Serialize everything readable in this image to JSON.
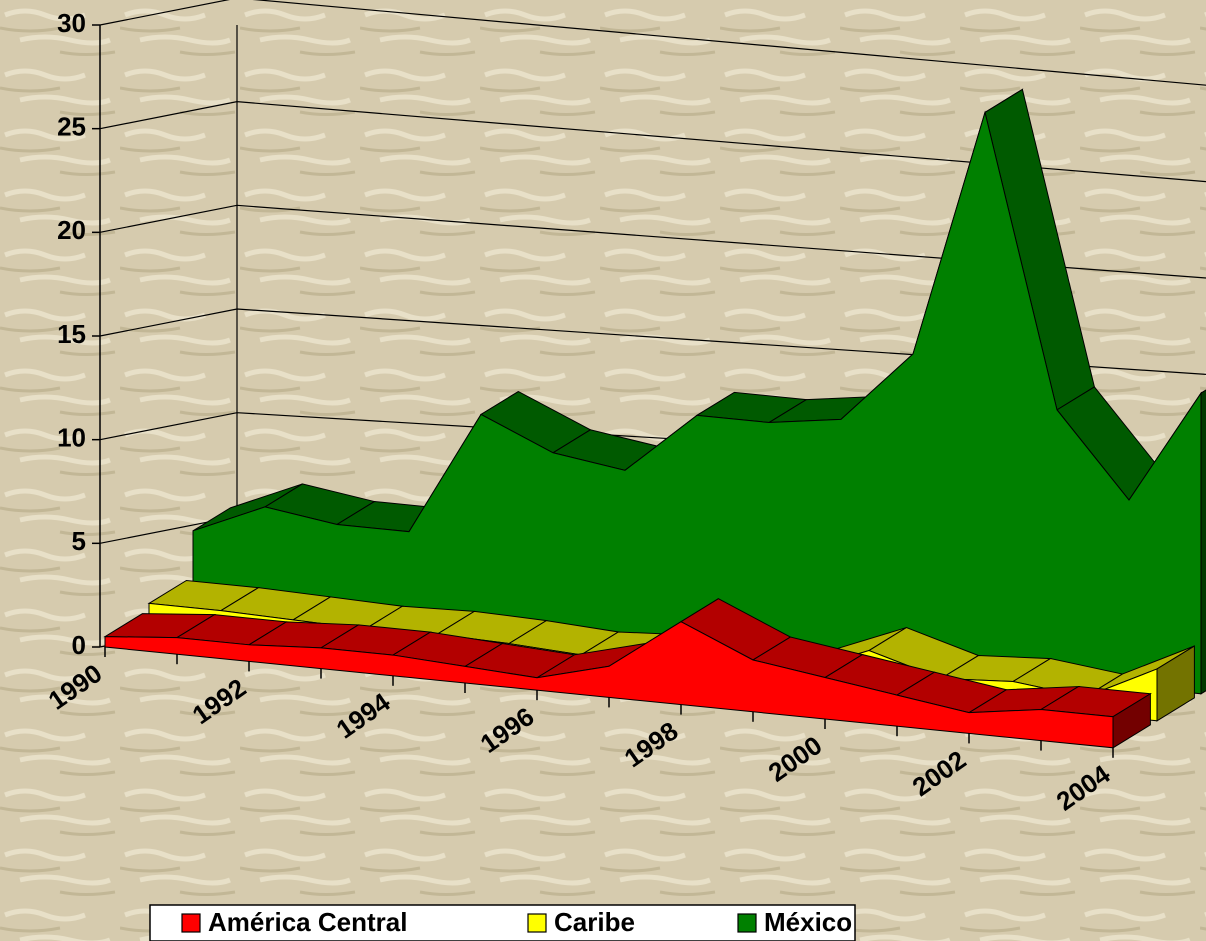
{
  "chart_data": {
    "type": "area3d",
    "categories": [
      "1990",
      null,
      "1992",
      null,
      "1994",
      null,
      "1996",
      null,
      "1998",
      null,
      "2000",
      null,
      "2002",
      null,
      "2004"
    ],
    "series": [
      {
        "name": "América Central",
        "color": "#ff0000",
        "values": [
          0.5,
          0.8,
          0.8,
          1,
          1,
          0.8,
          0.6,
          1.5,
          4,
          2.5,
          2,
          1.5,
          1,
          1.5,
          1.5
        ]
      },
      {
        "name": "Caribe",
        "color": "#ffff00",
        "values": [
          0.8,
          0.8,
          0.7,
          0.6,
          0.7,
          0.6,
          0.4,
          0.6,
          0.5,
          0.6,
          2,
          1,
          1.2,
          0.8,
          2.5
        ]
      },
      {
        "name": "México",
        "color": "#008000",
        "values": [
          3,
          4.5,
          4,
          4,
          10,
          8.5,
          8,
          11,
          11,
          11.5,
          15,
          27,
          13,
          9,
          14.5
        ]
      }
    ],
    "ylim": [
      0,
      30
    ],
    "yticks": [
      0,
      5,
      10,
      15,
      20,
      25,
      30
    ],
    "grid": true,
    "legend": "bottom"
  }
}
